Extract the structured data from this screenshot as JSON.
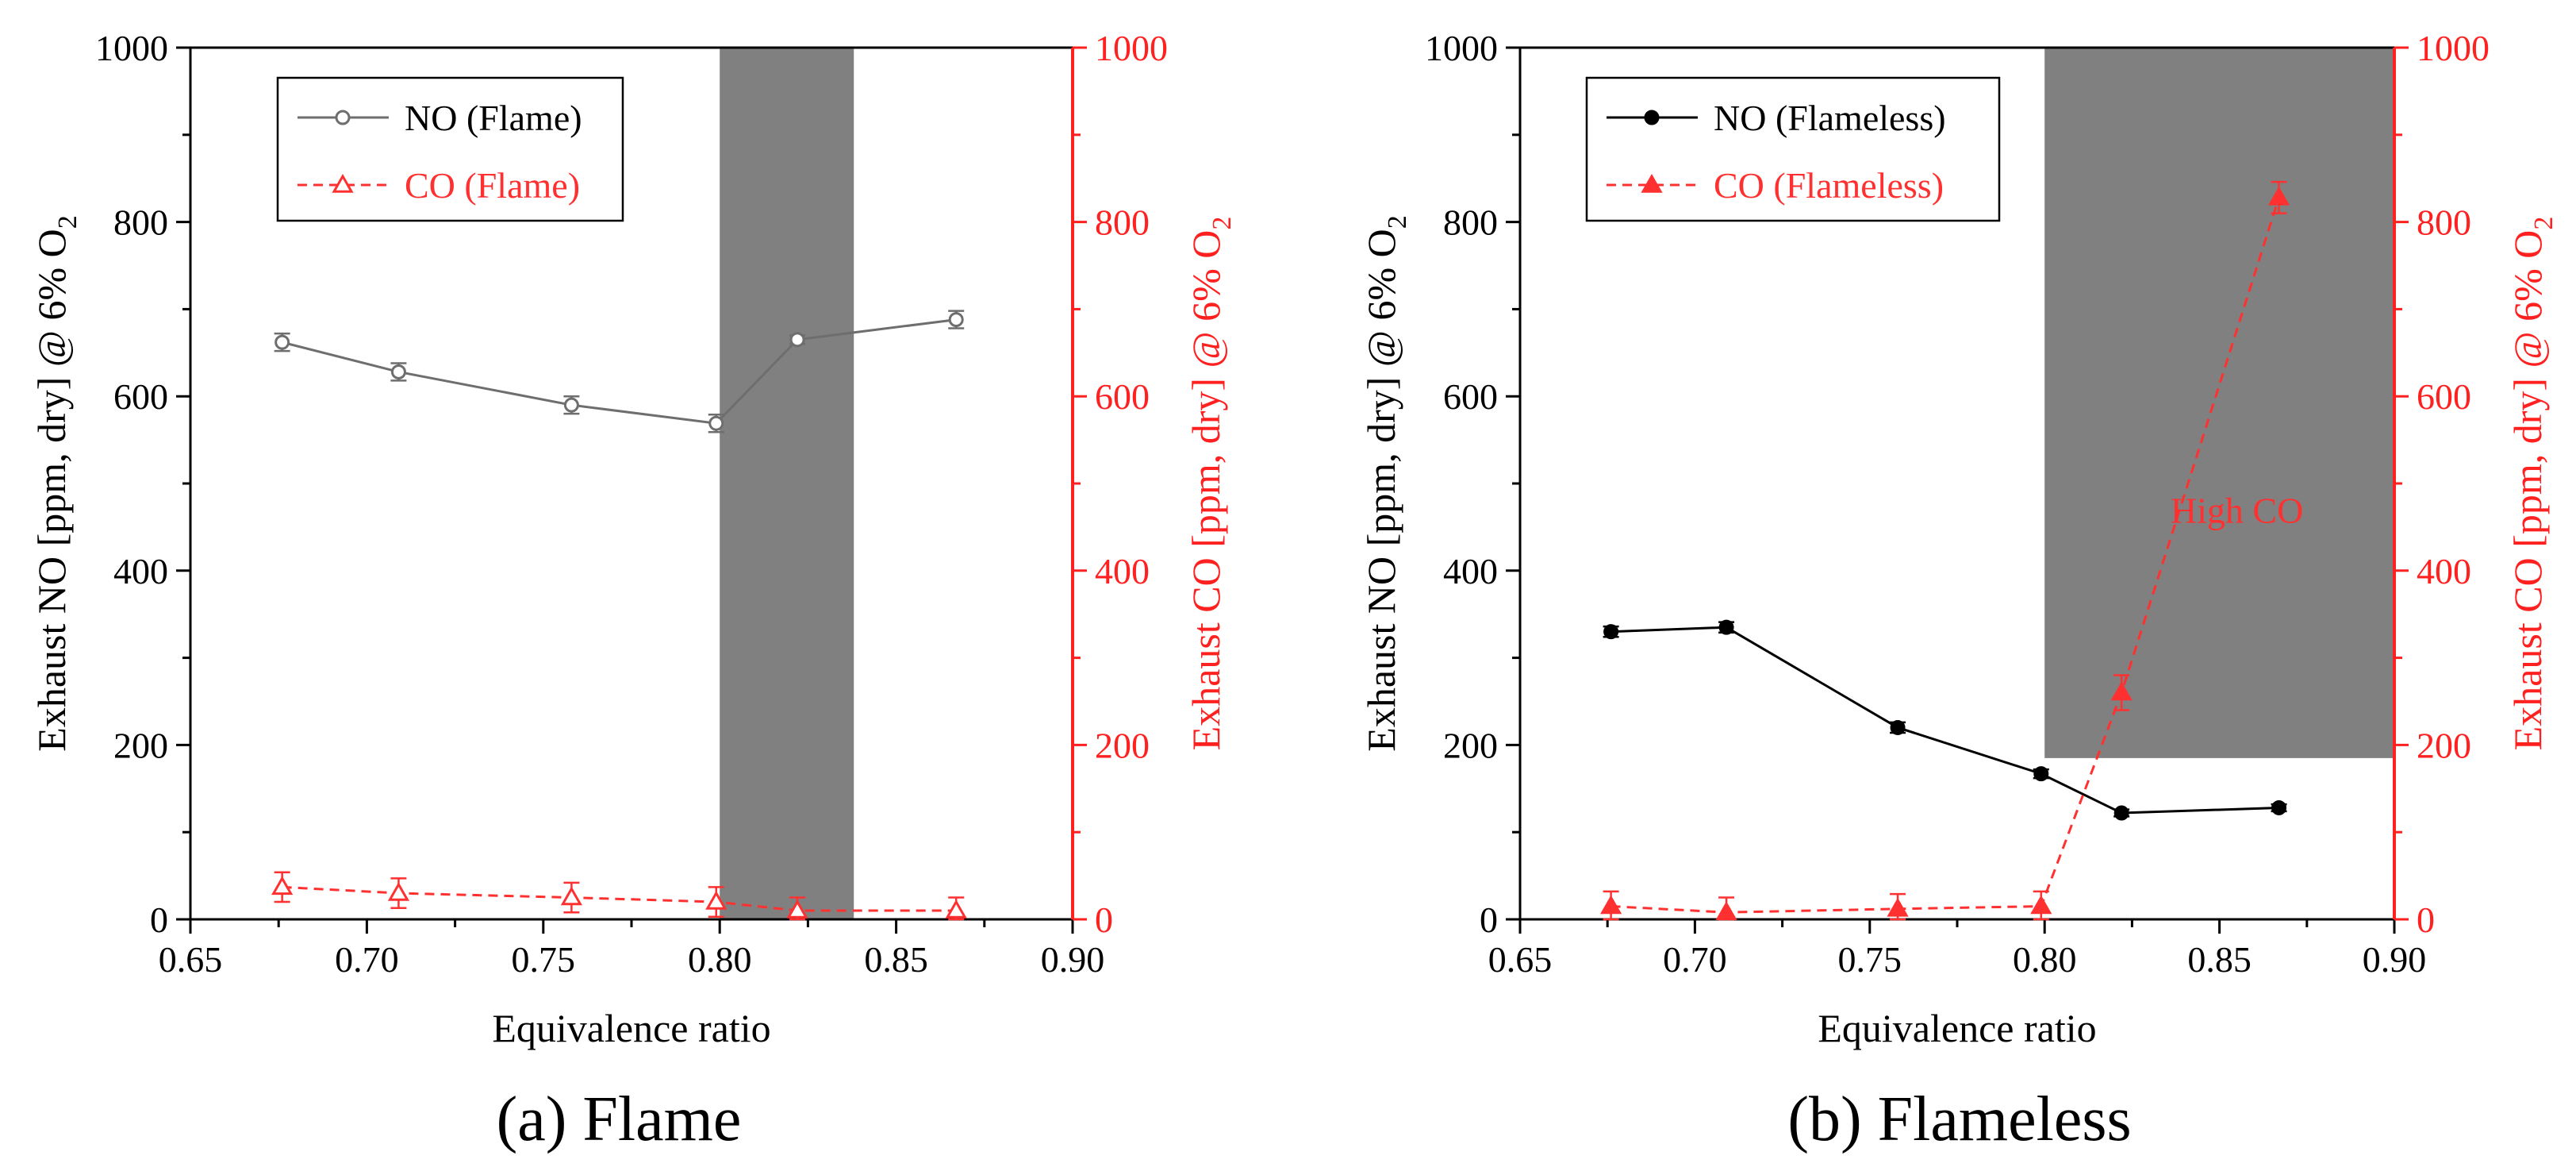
{
  "colors": {
    "no_flame": "#6e6e6e",
    "no_flameless": "#000000",
    "co": "#ff3030",
    "shade": "#808080",
    "axis_right": "#ff2020"
  },
  "chart_data": [
    {
      "type": "line",
      "caption": "(a) Flame",
      "xlabel": "Equivalence ratio",
      "ylabel_left": "Exhaust NO [ppm, dry] @ 6% O",
      "ylabel_left_sub": "2",
      "ylabel_right": "Exhaust CO [ppm, dry] @ 6% O",
      "ylabel_right_sub": "2",
      "xlim": [
        0.65,
        0.9
      ],
      "ylim": [
        0,
        1000
      ],
      "xticks": [
        "0.65",
        "0.70",
        "0.75",
        "0.80",
        "0.85",
        "0.90"
      ],
      "yticks": [
        "0",
        "200",
        "400",
        "600",
        "800",
        "1000"
      ],
      "shaded_x_range": [
        0.8,
        0.838
      ],
      "legend_position": "top-left",
      "series": [
        {
          "name": "NO (Flame)",
          "axis": "left",
          "marker": "circle-open",
          "dash": "solid",
          "x": [
            0.676,
            0.709,
            0.758,
            0.799,
            0.822,
            0.867
          ],
          "y": [
            662,
            628,
            590,
            569,
            665,
            688
          ],
          "err": [
            10,
            10,
            10,
            10,
            5,
            10
          ]
        },
        {
          "name": "CO (Flame)",
          "axis": "right",
          "marker": "triangle-open",
          "dash": "dashed",
          "x": [
            0.676,
            0.709,
            0.758,
            0.799,
            0.822,
            0.867
          ],
          "y": [
            37,
            30,
            25,
            20,
            10,
            10
          ],
          "err": [
            17,
            17,
            17,
            17,
            15,
            15
          ]
        }
      ]
    },
    {
      "type": "line",
      "caption": "(b) Flameless",
      "xlabel": "Equivalence ratio",
      "ylabel_left": "Exhaust NO [ppm, dry] @ 6% O",
      "ylabel_left_sub": "2",
      "ylabel_right": "Exhaust CO [ppm, dry] @ 6% O",
      "ylabel_right_sub": "2",
      "xlim": [
        0.65,
        0.9
      ],
      "ylim": [
        0,
        1000
      ],
      "xticks": [
        "0.65",
        "0.70",
        "0.75",
        "0.80",
        "0.85",
        "0.90"
      ],
      "yticks": [
        "0",
        "200",
        "400",
        "600",
        "800",
        "1000"
      ],
      "shaded_region": {
        "x": [
          0.8,
          0.9
        ],
        "y": [
          185,
          1000
        ]
      },
      "annotation": "High CO",
      "legend_position": "top-left",
      "series": [
        {
          "name": "NO (Flameless)",
          "axis": "left",
          "marker": "circle-filled",
          "dash": "solid",
          "x": [
            0.676,
            0.709,
            0.758,
            0.799,
            0.822,
            0.867
          ],
          "y": [
            330,
            335,
            220,
            167,
            122,
            128
          ],
          "err": [
            6,
            6,
            6,
            5,
            4,
            4
          ]
        },
        {
          "name": "CO (Flameless)",
          "axis": "right",
          "marker": "triangle-filled",
          "dash": "dashed",
          "x": [
            0.676,
            0.709,
            0.758,
            0.799,
            0.822,
            0.867
          ],
          "y": [
            15,
            8,
            12,
            15,
            260,
            828
          ],
          "err": [
            17,
            17,
            17,
            17,
            20,
            18
          ]
        }
      ]
    }
  ]
}
